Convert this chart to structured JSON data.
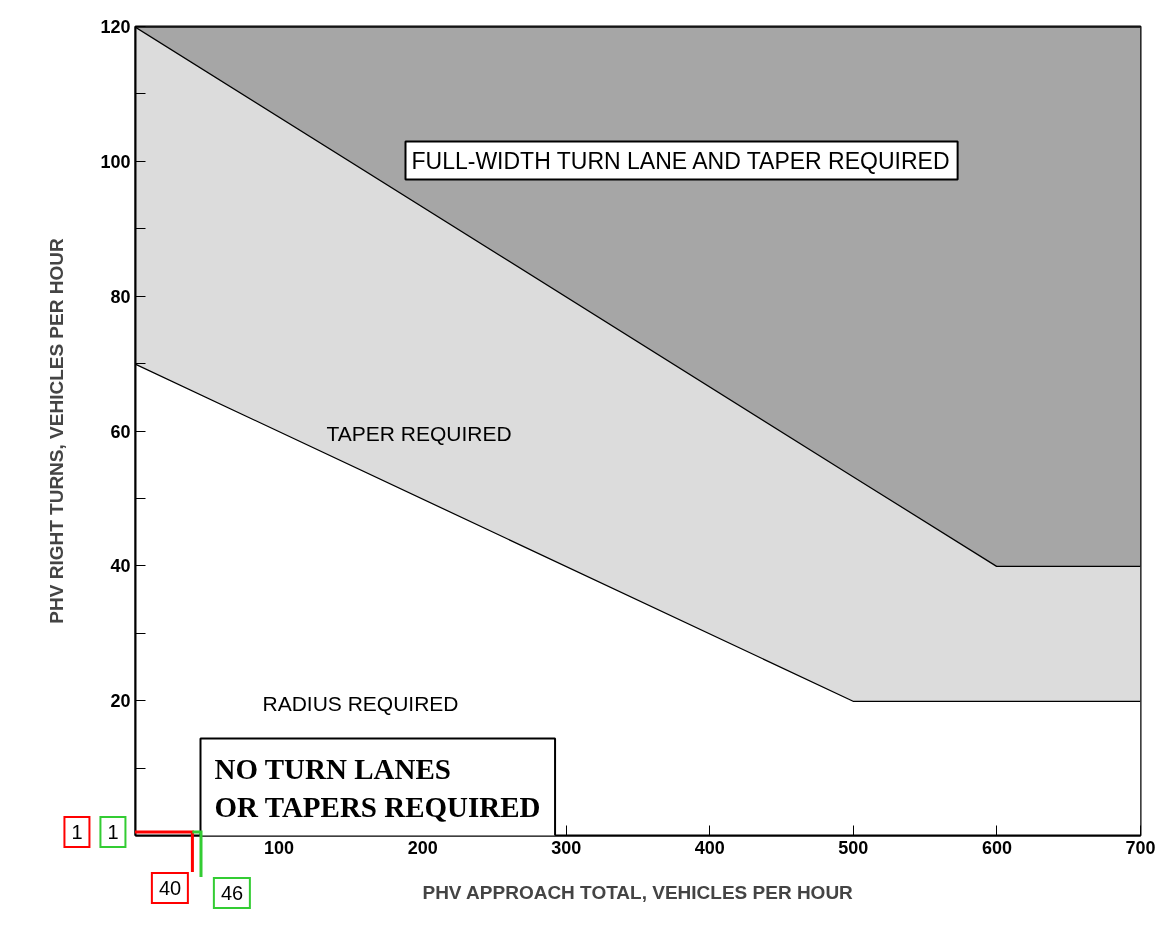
{
  "chart_data": {
    "type": "area",
    "stacked": true,
    "xlabel": "PHV APPROACH TOTAL, VEHICLES PER HOUR",
    "ylabel": "PHV RIGHT TURNS, VEHICLES PER HOUR",
    "x": [
      0,
      500,
      600,
      700
    ],
    "series": [
      {
        "color": "#ffffff",
        "values": [
          70,
          20,
          20,
          20
        ]
      },
      {
        "color": "#dcdcdc",
        "values": [
          50,
          33.3,
          20,
          20
        ]
      },
      {
        "color": "#a6a6a6",
        "values": [
          0,
          66.7,
          80,
          80
        ]
      }
    ],
    "xlim": [
      0,
      700
    ],
    "ylim": [
      0,
      120
    ],
    "xticks": [
      {
        "value": 0,
        "label": null
      },
      100,
      200,
      300,
      400,
      500,
      600,
      700
    ],
    "yticks": [
      {
        "value": 0,
        "label": null
      },
      {
        "value": 10,
        "label": null
      },
      20,
      {
        "value": 30,
        "label": null
      },
      40,
      {
        "value": 50,
        "label": null
      },
      60,
      {
        "value": 70,
        "label": null
      },
      80,
      {
        "value": 90,
        "label": null
      },
      100,
      {
        "value": 110,
        "label": null
      },
      120
    ],
    "grid": false,
    "annotations": [
      "FULL-WIDTH TURN LANE AND TAPER REQUIRED",
      "TAPER REQUIRED",
      "RADIUS REQUIRED",
      "NO TURN LANES\nOR TAPERS REQUIRED",
      "1",
      "1",
      {
        "text": "40",
        "x": 40,
        "y": 0
      },
      {
        "text": "46",
        "x": 46,
        "y": 0
      }
    ]
  }
}
